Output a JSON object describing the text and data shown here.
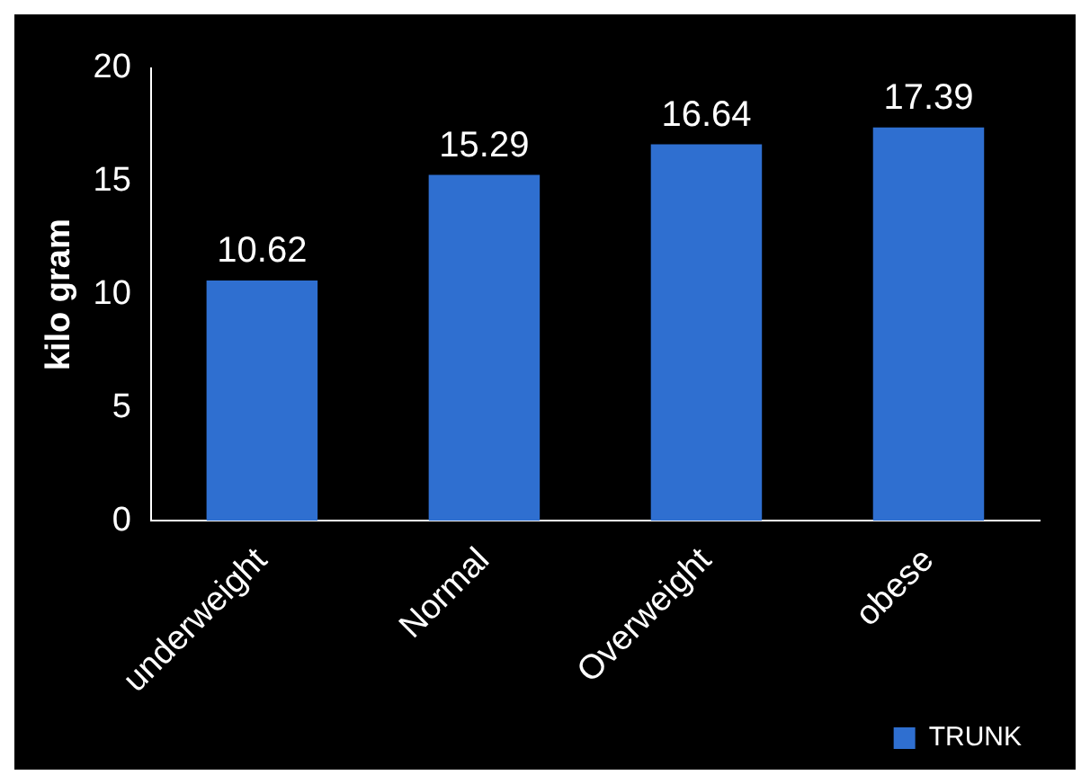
{
  "chart_data": {
    "type": "bar",
    "ylabel": "kilo gram",
    "categories": [
      "underweight",
      "Normal",
      "Overweight",
      "obese"
    ],
    "series": [
      {
        "name": "TRUNK",
        "color": "#2f6fd0",
        "values": [
          10.62,
          15.29,
          16.64,
          17.39
        ]
      }
    ],
    "ylim": [
      0,
      20
    ],
    "yticks": [
      0,
      5,
      10,
      15,
      20
    ],
    "grid": false,
    "data_labels": true,
    "legend": "bottom right"
  }
}
